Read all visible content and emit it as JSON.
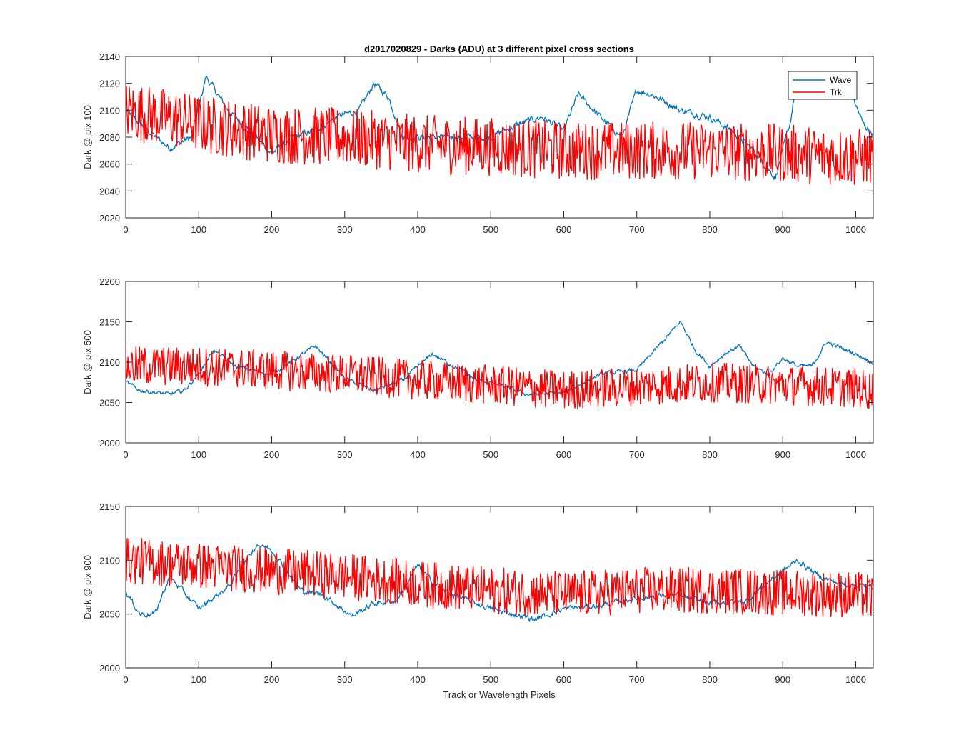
{
  "title": "d2017020829 - Darks (ADU) at 3 different pixel cross sections",
  "xlabel": "Track or Wavelength Pixels",
  "colors": {
    "wave": "#0072BD",
    "trk": "#FF0000",
    "axis": "#262626"
  },
  "legend": {
    "placement": "top-right",
    "entries": [
      "Wave",
      "Trk"
    ]
  },
  "chart_data": [
    {
      "type": "line",
      "ylabel": "Dark @ pix 100",
      "xlim": [
        0,
        1024
      ],
      "ylim": [
        2020,
        2140
      ],
      "xticks": [
        0,
        100,
        200,
        300,
        400,
        500,
        600,
        700,
        800,
        900,
        1000
      ],
      "yticks": [
        2020,
        2040,
        2060,
        2080,
        2100,
        2120,
        2140
      ],
      "grid": false,
      "series": [
        {
          "name": "Wave",
          "noise": 5,
          "x": [
            0,
            30,
            60,
            90,
            110,
            140,
            170,
            200,
            230,
            260,
            290,
            320,
            340,
            360,
            380,
            420,
            460,
            500,
            540,
            570,
            600,
            620,
            650,
            680,
            700,
            720,
            760,
            800,
            830,
            860,
            890,
            910,
            920,
            940,
            970,
            990,
            1010,
            1024
          ],
          "y": [
            2100,
            2085,
            2072,
            2080,
            2125,
            2100,
            2085,
            2068,
            2080,
            2085,
            2095,
            2100,
            2120,
            2110,
            2080,
            2080,
            2080,
            2080,
            2090,
            2095,
            2085,
            2112,
            2095,
            2080,
            2115,
            2112,
            2100,
            2095,
            2085,
            2070,
            2050,
            2090,
            2125,
            2112,
            2115,
            2118,
            2090,
            2082
          ]
        },
        {
          "name": "Trk",
          "noise": 22,
          "x": [
            0,
            100,
            200,
            300,
            400,
            500,
            600,
            700,
            800,
            900,
            1000,
            1024
          ],
          "y": [
            2100,
            2090,
            2082,
            2080,
            2075,
            2073,
            2070,
            2070,
            2070,
            2068,
            2065,
            2065
          ]
        }
      ]
    },
    {
      "type": "line",
      "ylabel": "Dark @ pix 500",
      "xlim": [
        0,
        1024
      ],
      "ylim": [
        2000,
        2200
      ],
      "xticks": [
        0,
        100,
        200,
        300,
        400,
        500,
        600,
        700,
        800,
        900,
        1000
      ],
      "yticks": [
        2000,
        2050,
        2100,
        2150,
        2200
      ],
      "grid": false,
      "series": [
        {
          "name": "Wave",
          "noise": 5,
          "x": [
            0,
            20,
            60,
            80,
            100,
            120,
            150,
            200,
            260,
            300,
            340,
            380,
            420,
            450,
            480,
            500,
            550,
            600,
            650,
            700,
            730,
            760,
            780,
            800,
            820,
            840,
            860,
            880,
            900,
            920,
            940,
            960,
            1000,
            1024
          ],
          "y": [
            2075,
            2065,
            2060,
            2065,
            2085,
            2115,
            2095,
            2085,
            2120,
            2080,
            2065,
            2078,
            2110,
            2095,
            2078,
            2075,
            2060,
            2062,
            2085,
            2090,
            2120,
            2150,
            2115,
            2095,
            2110,
            2120,
            2095,
            2085,
            2105,
            2095,
            2095,
            2125,
            2110,
            2100
          ]
        },
        {
          "name": "Trk",
          "noise": 25,
          "x": [
            0,
            100,
            200,
            300,
            400,
            500,
            600,
            700,
            800,
            900,
            1000,
            1024
          ],
          "y": [
            2095,
            2095,
            2090,
            2085,
            2078,
            2072,
            2065,
            2070,
            2075,
            2072,
            2068,
            2065
          ]
        }
      ]
    },
    {
      "type": "line",
      "ylabel": "Dark @ pix 900",
      "xlim": [
        0,
        1024
      ],
      "ylim": [
        2000,
        2150
      ],
      "xticks": [
        0,
        100,
        200,
        300,
        400,
        500,
        600,
        700,
        800,
        900,
        1000
      ],
      "yticks": [
        2000,
        2050,
        2100,
        2150
      ],
      "grid": false,
      "series": [
        {
          "name": "Wave",
          "noise": 5,
          "x": [
            0,
            20,
            40,
            60,
            100,
            140,
            180,
            200,
            240,
            270,
            310,
            340,
            370,
            400,
            420,
            440,
            500,
            560,
            600,
            650,
            700,
            750,
            800,
            850,
            880,
            920,
            950,
            980,
            1024
          ],
          "y": [
            2070,
            2050,
            2050,
            2085,
            2055,
            2075,
            2115,
            2110,
            2072,
            2068,
            2048,
            2060,
            2062,
            2095,
            2080,
            2070,
            2055,
            2045,
            2055,
            2058,
            2065,
            2068,
            2060,
            2062,
            2080,
            2100,
            2085,
            2078,
            2075
          ]
        },
        {
          "name": "Trk",
          "noise": 22,
          "x": [
            0,
            100,
            200,
            300,
            400,
            500,
            600,
            700,
            800,
            900,
            1000,
            1024
          ],
          "y": [
            2100,
            2095,
            2090,
            2085,
            2078,
            2072,
            2068,
            2072,
            2072,
            2070,
            2068,
            2065
          ]
        }
      ]
    }
  ]
}
